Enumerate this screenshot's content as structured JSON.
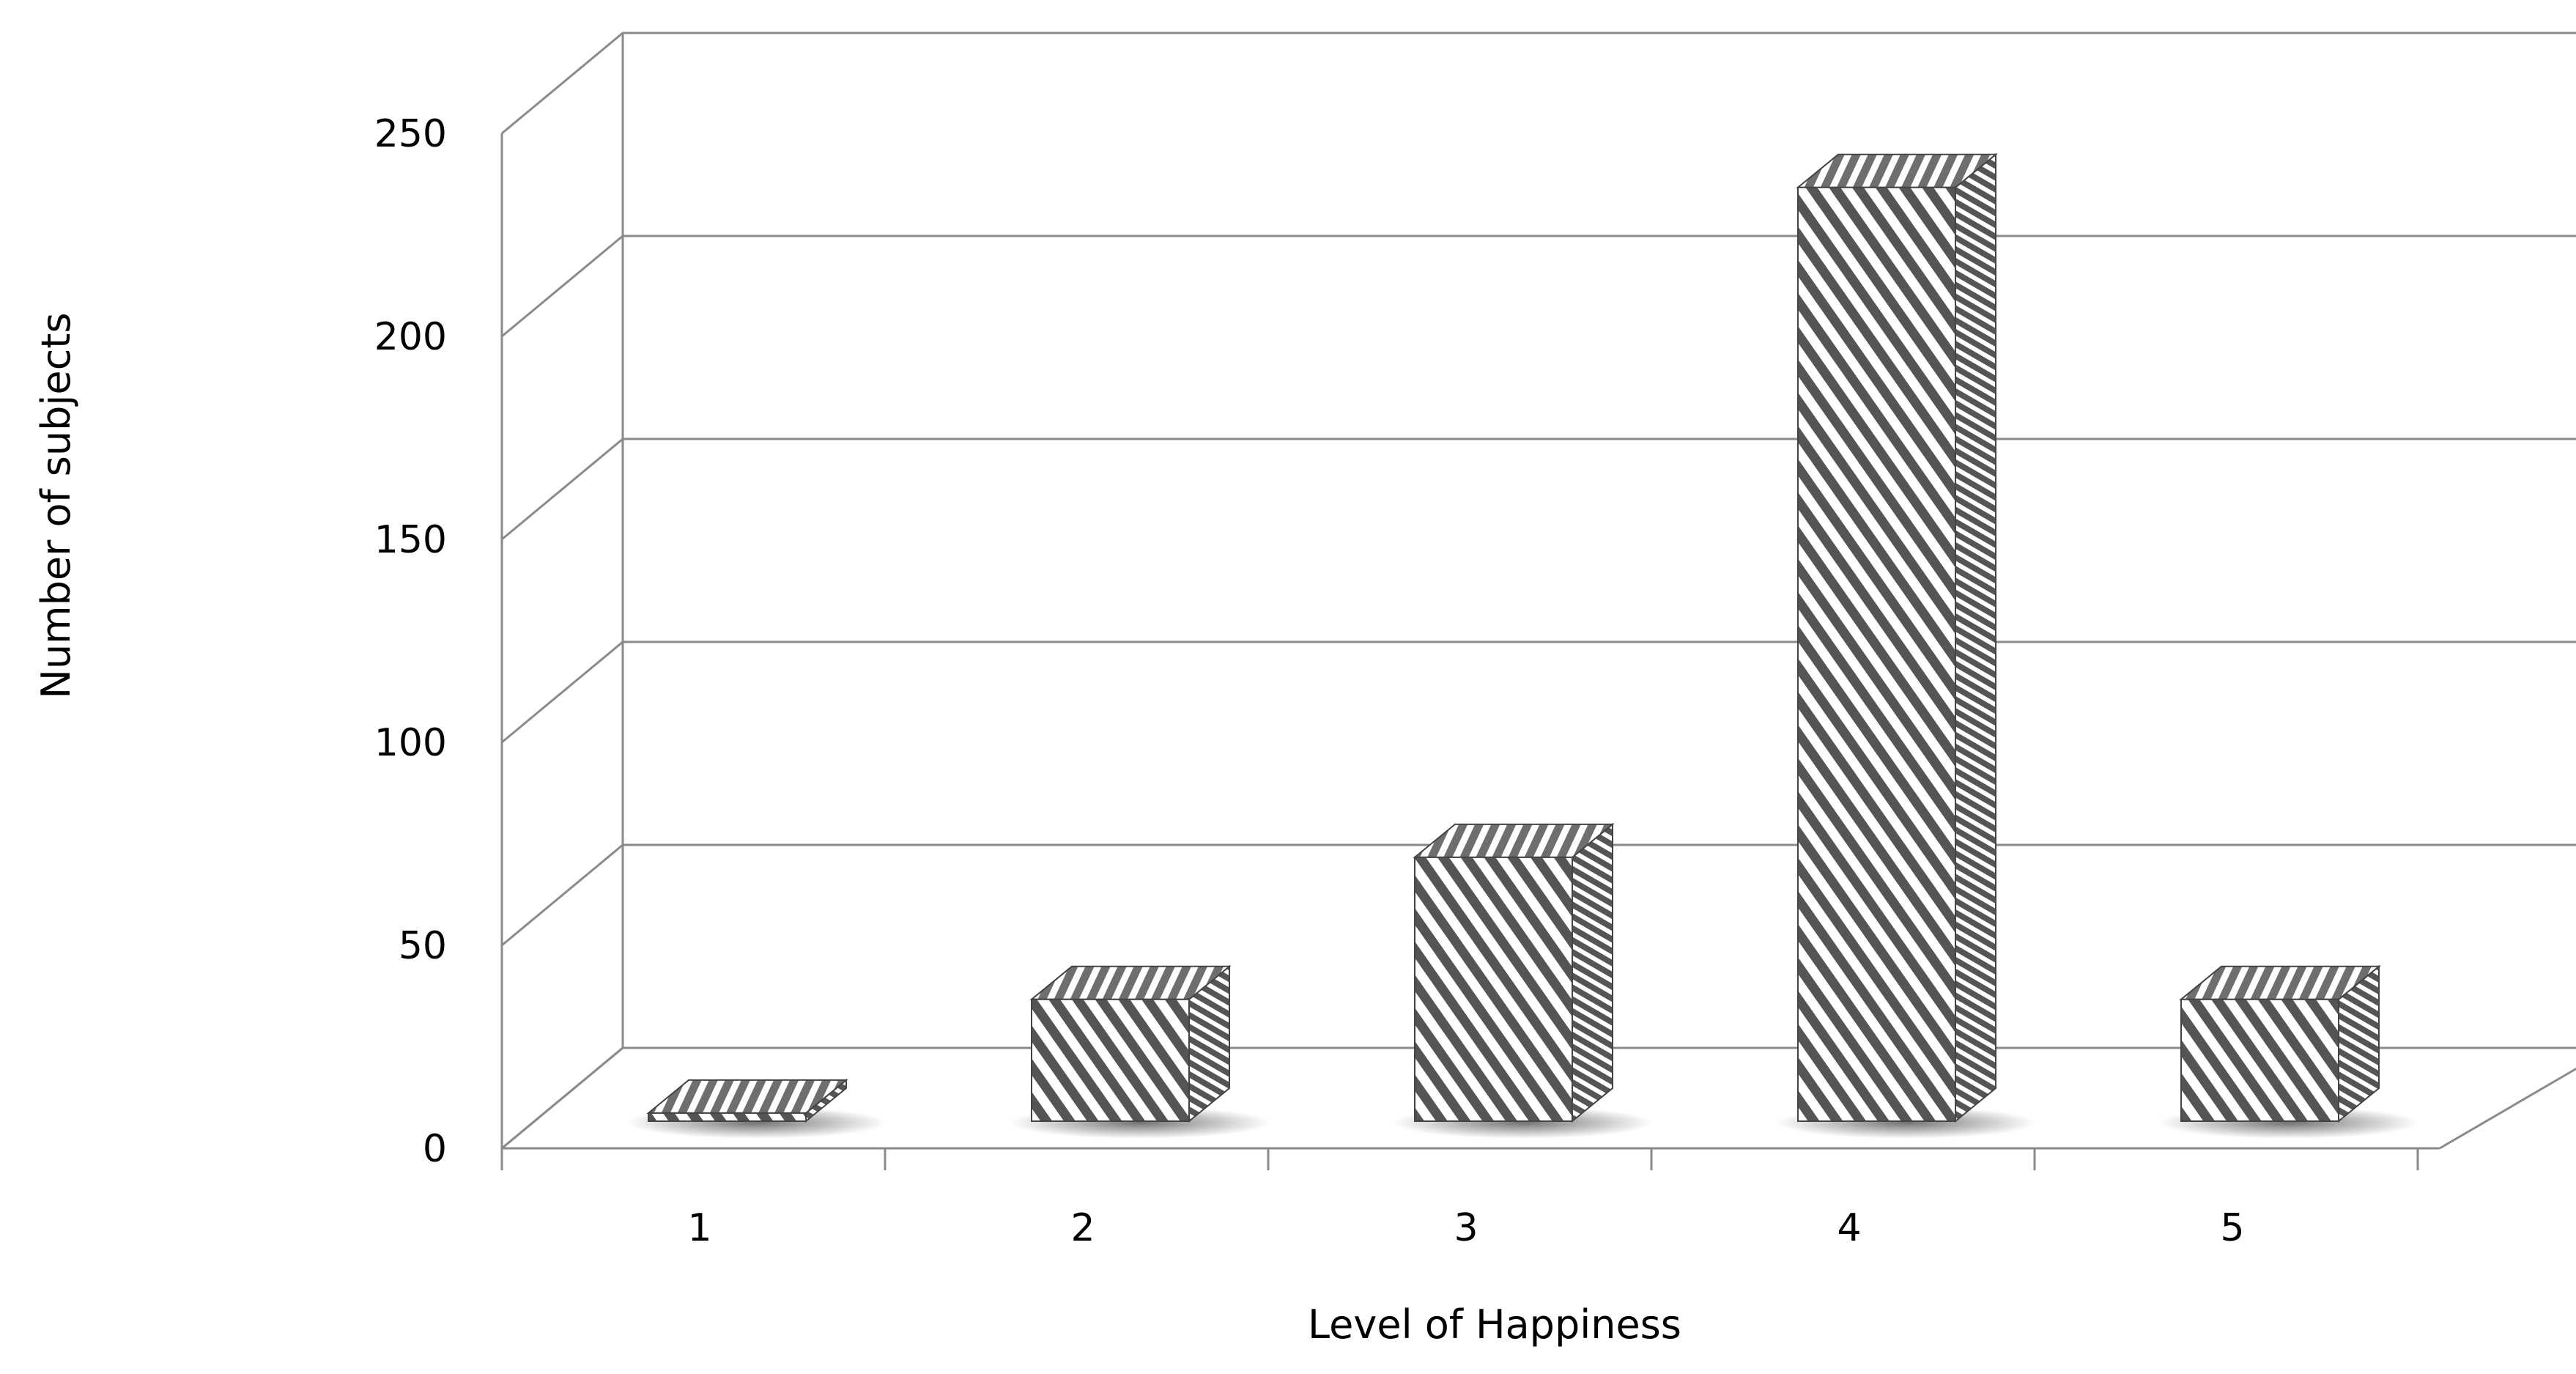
{
  "chart_data": {
    "type": "bar",
    "categories": [
      "1",
      "2",
      "3",
      "4",
      "5"
    ],
    "series": [
      {
        "values": [
          2,
          30,
          65,
          230,
          30
        ]
      }
    ],
    "xlabel": "Level of Happiness",
    "ylabel": "Number of subjects",
    "ylim": [
      0,
      250
    ],
    "yticks": [
      0,
      50,
      100,
      150,
      200,
      250
    ],
    "grid": true,
    "style": "3d-hatched",
    "colors": {
      "front_hatch": "#555555",
      "top_hatch": "#6e6e6e",
      "side_hatch": "#555555",
      "grid": "#8a8a8a"
    }
  }
}
